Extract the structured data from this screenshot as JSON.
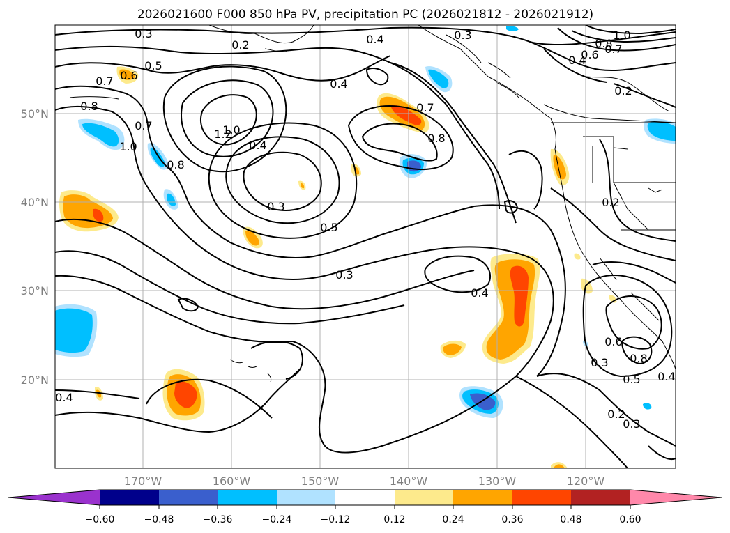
{
  "title": "2026021600 F000 850 hPa PV, precipitation PC (2026021812 - 2026021912)",
  "lon_labels": [
    "170°W",
    "160°W",
    "150°W",
    "140°W",
    "130°W",
    "120°W"
  ],
  "lat_labels": [
    "50°N",
    "40°N",
    "30°N",
    "20°N"
  ],
  "colorbar": {
    "tick_labels": [
      "−0.60",
      "−0.48",
      "−0.36",
      "−0.24",
      "−0.12",
      "0.12",
      "0.24",
      "0.36",
      "0.48",
      "0.60"
    ],
    "colors": [
      "#9a32cd",
      "#00008b",
      "#3a5fcd",
      "#00bfff",
      "#b0e2ff",
      "#ffffff",
      "#fdea8c",
      "#ffa500",
      "#ff4500",
      "#b22222",
      "#ff88aa"
    ]
  },
  "contour_labels": [
    {
      "text": "0.3"
    },
    {
      "text": "0.2"
    },
    {
      "text": "0.5"
    },
    {
      "text": "0.7"
    },
    {
      "text": "0.6"
    },
    {
      "text": "0.8"
    },
    {
      "text": "0.7"
    },
    {
      "text": "1.0"
    },
    {
      "text": "1.2"
    },
    {
      "text": "1.0"
    },
    {
      "text": "0.4"
    },
    {
      "text": "0.8"
    },
    {
      "text": "0.3"
    },
    {
      "text": "0.5"
    },
    {
      "text": "0.3"
    },
    {
      "text": "0.4"
    },
    {
      "text": "0.4"
    },
    {
      "text": "0.3"
    },
    {
      "text": "0.7"
    },
    {
      "text": "0.8"
    },
    {
      "text": "0.4"
    },
    {
      "text": "1.0"
    },
    {
      "text": "0.8"
    },
    {
      "text": "0.7"
    },
    {
      "text": "0.6"
    },
    {
      "text": "0.4"
    },
    {
      "text": "0.2"
    },
    {
      "text": "0.2"
    },
    {
      "text": "0.3"
    },
    {
      "text": "0.6"
    },
    {
      "text": "0.8"
    },
    {
      "text": "0.5"
    },
    {
      "text": "0.4"
    },
    {
      "text": "0.2"
    },
    {
      "text": "0.3"
    },
    {
      "text": "0.4"
    }
  ]
}
